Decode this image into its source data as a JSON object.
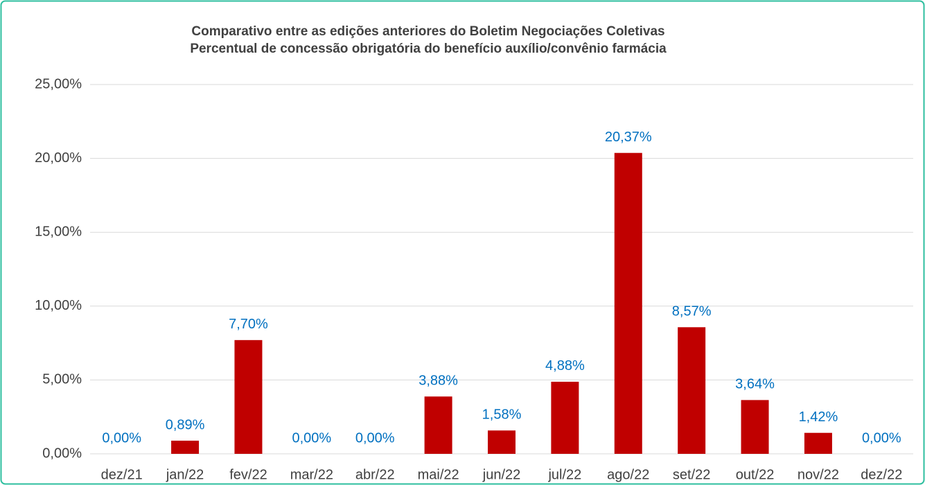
{
  "chart_data": {
    "type": "bar",
    "title": "Comparativo entre as edições anteriores do Boletim Negociações Coletivas",
    "subtitle": "Percentual de concessão obrigatória do benefício auxílio/convênio farmácia",
    "categories": [
      "dez/21",
      "jan/22",
      "fev/22",
      "mar/22",
      "abr/22",
      "mai/22",
      "jun/22",
      "jul/22",
      "ago/22",
      "set/22",
      "out/22",
      "nov/22",
      "dez/22"
    ],
    "values": [
      0,
      0.89,
      7.7,
      0,
      0,
      3.88,
      1.58,
      4.88,
      20.37,
      8.57,
      3.64,
      1.42,
      0
    ],
    "value_labels": [
      "0,00%",
      "0,89%",
      "7,70%",
      "0,00%",
      "0,00%",
      "3,88%",
      "1,58%",
      "4,88%",
      "20,37%",
      "8,57%",
      "3,64%",
      "1,42%",
      "0,00%"
    ],
    "color": "#c00000",
    "ylim": [
      0,
      25
    ],
    "yticks": [
      {
        "value": 0,
        "label": "0,00%"
      },
      {
        "value": 5,
        "label": "5,00%"
      },
      {
        "value": 10,
        "label": "10,00%"
      },
      {
        "value": 15,
        "label": "15,00%"
      },
      {
        "value": 20,
        "label": "20,00%"
      },
      {
        "value": 25,
        "label": "25,00%"
      }
    ],
    "grid": true
  }
}
